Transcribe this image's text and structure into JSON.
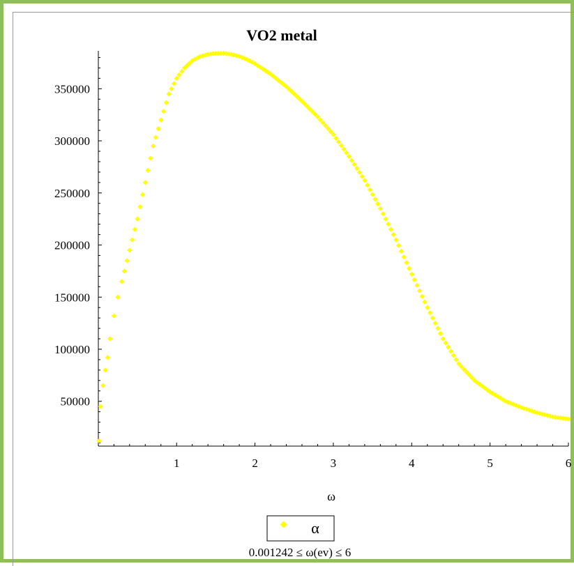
{
  "chart_data": {
    "type": "scatter",
    "title": "VO2 metal",
    "xlabel": "ω",
    "ylabel": "",
    "xlim": [
      0.001242,
      6
    ],
    "ylim": [
      7000,
      385000
    ],
    "x_ticks": [
      "1",
      "2",
      "3",
      "4",
      "5",
      "6"
    ],
    "y_ticks": [
      "50000",
      "100000",
      "150000",
      "200000",
      "250000",
      "300000",
      "350000"
    ],
    "legend_label": "α",
    "range_caption": "0.001242 ≤ ω(ev) ≤ 6",
    "legend_position": "bottom",
    "marker_color": "#ffff00",
    "series": [
      {
        "name": "α",
        "color": "#ffff00",
        "x": [
          0.01,
          0.03,
          0.06,
          0.09,
          0.12,
          0.15,
          0.2,
          0.25,
          0.3,
          0.4,
          0.5,
          0.6,
          0.7,
          0.8,
          0.9,
          1.0,
          1.1,
          1.2,
          1.3,
          1.4,
          1.5,
          1.6,
          1.7,
          1.8,
          1.9,
          2.0,
          2.2,
          2.4,
          2.6,
          2.8,
          3.0,
          3.2,
          3.4,
          3.6,
          3.8,
          4.0,
          4.2,
          4.4,
          4.6,
          4.8,
          5.0,
          5.2,
          5.4,
          5.6,
          5.8,
          6.0
        ],
        "y": [
          12000,
          45000,
          65000,
          80000,
          92000,
          110000,
          132000,
          150000,
          165000,
          195000,
          225000,
          260000,
          295000,
          320000,
          345000,
          360000,
          370000,
          377000,
          381000,
          383000,
          384000,
          384000,
          383000,
          381000,
          378000,
          374000,
          364000,
          352000,
          338000,
          323000,
          306000,
          285000,
          262000,
          235000,
          205000,
          172000,
          140000,
          110000,
          86000,
          70000,
          59000,
          50000,
          44000,
          39000,
          35000,
          33000
        ]
      }
    ]
  }
}
